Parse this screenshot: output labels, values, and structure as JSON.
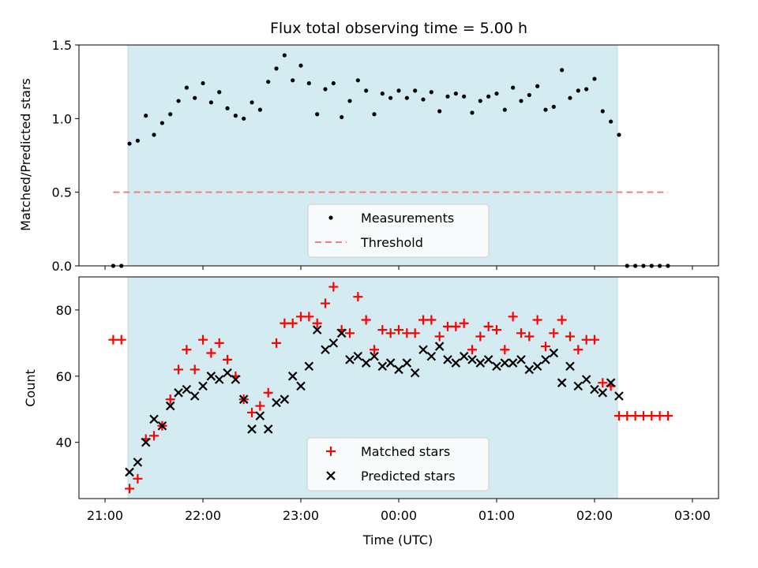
{
  "chart_data": {
    "type": "scatter",
    "title": "Flux total observing time = 5.00 h",
    "xlabel": "Time (UTC)",
    "x_tick_labels": [
      "21:00",
      "22:00",
      "23:00",
      "00:00",
      "01:00",
      "02:00",
      "03:00"
    ],
    "shaded_interval": [
      "21:14",
      "02:14"
    ],
    "shade_color": "#d4ebf1",
    "panels": [
      {
        "ylabel": "Matched/Predicted stars",
        "ylim": [
          0,
          1.5
        ],
        "y_ticks": [
          0.0,
          0.5,
          1.0,
          1.5
        ],
        "y_tick_labels": [
          "0.0",
          "0.5",
          "1.0",
          "1.5"
        ],
        "legend": [
          "Measurements",
          "Threshold"
        ],
        "legend_position": "bottom-center",
        "threshold": {
          "value": 0.5,
          "x_range": [
            "21:05",
            "02:45"
          ],
          "color": "#f08080"
        },
        "series": [
          {
            "name": "Measurements",
            "marker": "dot",
            "color": "#000000",
            "points": [
              [
                "21:05",
                0.0
              ],
              [
                "21:10",
                0.0
              ],
              [
                "21:15",
                0.83
              ],
              [
                "21:20",
                0.85
              ],
              [
                "21:25",
                1.02
              ],
              [
                "21:30",
                0.89
              ],
              [
                "21:35",
                0.97
              ],
              [
                "21:40",
                1.03
              ],
              [
                "21:45",
                1.12
              ],
              [
                "21:50",
                1.21
              ],
              [
                "21:55",
                1.14
              ],
              [
                "22:00",
                1.24
              ],
              [
                "22:05",
                1.11
              ],
              [
                "22:10",
                1.18
              ],
              [
                "22:15",
                1.07
              ],
              [
                "22:20",
                1.02
              ],
              [
                "22:25",
                1.0
              ],
              [
                "22:30",
                1.11
              ],
              [
                "22:35",
                1.06
              ],
              [
                "22:40",
                1.25
              ],
              [
                "22:45",
                1.34
              ],
              [
                "22:50",
                1.43
              ],
              [
                "22:55",
                1.26
              ],
              [
                "23:00",
                1.36
              ],
              [
                "23:05",
                1.24
              ],
              [
                "23:10",
                1.03
              ],
              [
                "23:15",
                1.2
              ],
              [
                "23:20",
                1.24
              ],
              [
                "23:25",
                1.01
              ],
              [
                "23:30",
                1.12
              ],
              [
                "23:35",
                1.26
              ],
              [
                "23:40",
                1.19
              ],
              [
                "23:45",
                1.03
              ],
              [
                "23:50",
                1.17
              ],
              [
                "23:55",
                1.14
              ],
              [
                "00:00",
                1.19
              ],
              [
                "00:05",
                1.14
              ],
              [
                "00:10",
                1.19
              ],
              [
                "00:15",
                1.13
              ],
              [
                "00:20",
                1.18
              ],
              [
                "00:25",
                1.05
              ],
              [
                "00:30",
                1.15
              ],
              [
                "00:35",
                1.17
              ],
              [
                "00:40",
                1.15
              ],
              [
                "00:45",
                1.04
              ],
              [
                "00:50",
                1.12
              ],
              [
                "00:55",
                1.15
              ],
              [
                "01:00",
                1.17
              ],
              [
                "01:05",
                1.06
              ],
              [
                "01:10",
                1.21
              ],
              [
                "01:15",
                1.12
              ],
              [
                "01:20",
                1.16
              ],
              [
                "01:25",
                1.22
              ],
              [
                "01:30",
                1.06
              ],
              [
                "01:35",
                1.08
              ],
              [
                "01:40",
                1.33
              ],
              [
                "01:45",
                1.14
              ],
              [
                "01:50",
                1.19
              ],
              [
                "01:55",
                1.2
              ],
              [
                "02:00",
                1.27
              ],
              [
                "02:05",
                1.05
              ],
              [
                "02:10",
                0.98
              ],
              [
                "02:15",
                0.89
              ],
              [
                "02:20",
                0.0
              ],
              [
                "02:25",
                0.0
              ],
              [
                "02:30",
                0.0
              ],
              [
                "02:35",
                0.0
              ],
              [
                "02:40",
                0.0
              ],
              [
                "02:45",
                0.0
              ]
            ]
          }
        ]
      },
      {
        "ylabel": "Count",
        "ylim": [
          23,
          90
        ],
        "y_ticks": [
          40,
          60,
          80
        ],
        "y_tick_labels": [
          "40",
          "60",
          "80"
        ],
        "legend": [
          "Matched stars",
          "Predicted stars"
        ],
        "legend_position": "bottom-center",
        "series": [
          {
            "name": "Matched stars",
            "marker": "plus",
            "color": "#ff0000",
            "points": [
              [
                "21:05",
                71
              ],
              [
                "21:10",
                71
              ],
              [
                "21:15",
                26
              ],
              [
                "21:20",
                29
              ],
              [
                "21:25",
                41
              ],
              [
                "21:30",
                42
              ],
              [
                "21:35",
                45
              ],
              [
                "21:40",
                53
              ],
              [
                "21:45",
                62
              ],
              [
                "21:50",
                68
              ],
              [
                "21:55",
                62
              ],
              [
                "22:00",
                71
              ],
              [
                "22:05",
                67
              ],
              [
                "22:10",
                70
              ],
              [
                "22:15",
                65
              ],
              [
                "22:20",
                60
              ],
              [
                "22:25",
                53
              ],
              [
                "22:30",
                49
              ],
              [
                "22:35",
                51
              ],
              [
                "22:40",
                55
              ],
              [
                "22:45",
                70
              ],
              [
                "22:50",
                76
              ],
              [
                "22:55",
                76
              ],
              [
                "23:00",
                78
              ],
              [
                "23:05",
                78
              ],
              [
                "23:10",
                76
              ],
              [
                "23:15",
                82
              ],
              [
                "23:20",
                87
              ],
              [
                "23:25",
                74
              ],
              [
                "23:30",
                73
              ],
              [
                "23:35",
                84
              ],
              [
                "23:40",
                77
              ],
              [
                "23:45",
                68
              ],
              [
                "23:50",
                74
              ],
              [
                "23:55",
                73
              ],
              [
                "00:00",
                74
              ],
              [
                "00:05",
                73
              ],
              [
                "00:10",
                73
              ],
              [
                "00:15",
                77
              ],
              [
                "00:20",
                77
              ],
              [
                "00:25",
                72
              ],
              [
                "00:30",
                75
              ],
              [
                "00:35",
                75
              ],
              [
                "00:40",
                76
              ],
              [
                "00:45",
                68
              ],
              [
                "00:50",
                72
              ],
              [
                "00:55",
                75
              ],
              [
                "01:00",
                74
              ],
              [
                "01:05",
                68
              ],
              [
                "01:10",
                78
              ],
              [
                "01:15",
                73
              ],
              [
                "01:20",
                72
              ],
              [
                "01:25",
                77
              ],
              [
                "01:30",
                69
              ],
              [
                "01:35",
                73
              ],
              [
                "01:40",
                77
              ],
              [
                "01:45",
                72
              ],
              [
                "01:50",
                68
              ],
              [
                "01:55",
                71
              ],
              [
                "02:00",
                71
              ],
              [
                "02:05",
                58
              ],
              [
                "02:10",
                57
              ],
              [
                "02:15",
                48
              ],
              [
                "02:20",
                48
              ],
              [
                "02:25",
                48
              ],
              [
                "02:30",
                48
              ],
              [
                "02:35",
                48
              ],
              [
                "02:40",
                48
              ],
              [
                "02:45",
                48
              ]
            ]
          },
          {
            "name": "Predicted stars",
            "marker": "x",
            "color": "#000000",
            "points": [
              [
                "21:15",
                31
              ],
              [
                "21:20",
                34
              ],
              [
                "21:25",
                40
              ],
              [
                "21:30",
                47
              ],
              [
                "21:35",
                45
              ],
              [
                "21:40",
                51
              ],
              [
                "21:45",
                55
              ],
              [
                "21:50",
                56
              ],
              [
                "21:55",
                54
              ],
              [
                "22:00",
                57
              ],
              [
                "22:05",
                60
              ],
              [
                "22:10",
                59
              ],
              [
                "22:15",
                61
              ],
              [
                "22:20",
                59
              ],
              [
                "22:25",
                53
              ],
              [
                "22:30",
                44
              ],
              [
                "22:35",
                48
              ],
              [
                "22:40",
                44
              ],
              [
                "22:45",
                52
              ],
              [
                "22:50",
                53
              ],
              [
                "22:55",
                60
              ],
              [
                "23:00",
                57
              ],
              [
                "23:05",
                63
              ],
              [
                "23:10",
                74
              ],
              [
                "23:15",
                68
              ],
              [
                "23:20",
                70
              ],
              [
                "23:25",
                73
              ],
              [
                "23:30",
                65
              ],
              [
                "23:35",
                66
              ],
              [
                "23:40",
                64
              ],
              [
                "23:45",
                66
              ],
              [
                "23:50",
                63
              ],
              [
                "23:55",
                64
              ],
              [
                "00:00",
                62
              ],
              [
                "00:05",
                64
              ],
              [
                "00:10",
                61
              ],
              [
                "00:15",
                68
              ],
              [
                "00:20",
                66
              ],
              [
                "00:25",
                69
              ],
              [
                "00:30",
                65
              ],
              [
                "00:35",
                64
              ],
              [
                "00:40",
                66
              ],
              [
                "00:45",
                65
              ],
              [
                "00:50",
                64
              ],
              [
                "00:55",
                65
              ],
              [
                "01:00",
                63
              ],
              [
                "01:05",
                64
              ],
              [
                "01:10",
                64
              ],
              [
                "01:15",
                65
              ],
              [
                "01:20",
                62
              ],
              [
                "01:25",
                63
              ],
              [
                "01:30",
                65
              ],
              [
                "01:35",
                67
              ],
              [
                "01:40",
                58
              ],
              [
                "01:45",
                63
              ],
              [
                "01:50",
                57
              ],
              [
                "01:55",
                59
              ],
              [
                "02:00",
                56
              ],
              [
                "02:05",
                55
              ],
              [
                "02:10",
                58
              ],
              [
                "02:15",
                54
              ]
            ]
          }
        ]
      }
    ]
  }
}
